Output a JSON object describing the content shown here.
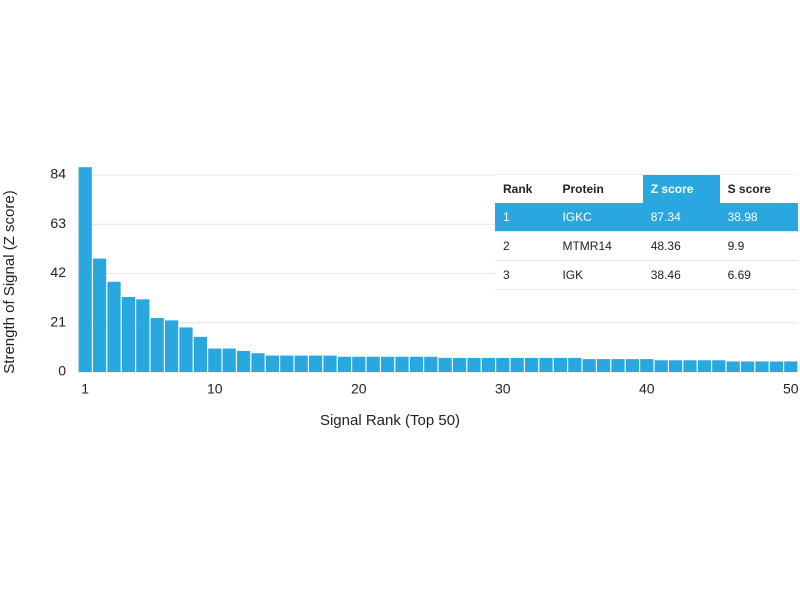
{
  "chart_data": {
    "type": "bar",
    "x_label": "Signal Rank (Top 50)",
    "y_label": "Strength of Signal (Z score)",
    "x": [
      1,
      2,
      3,
      4,
      5,
      6,
      7,
      8,
      9,
      10,
      11,
      12,
      13,
      14,
      15,
      16,
      17,
      18,
      19,
      20,
      21,
      22,
      23,
      24,
      25,
      26,
      27,
      28,
      29,
      30,
      31,
      32,
      33,
      34,
      35,
      36,
      37,
      38,
      39,
      40,
      41,
      42,
      43,
      44,
      45,
      46,
      47,
      48,
      49,
      50
    ],
    "values": [
      87.34,
      48.36,
      38.46,
      32,
      31,
      23,
      22,
      19,
      15,
      10,
      10,
      9,
      8,
      7,
      7,
      7,
      7,
      7,
      6.5,
      6.5,
      6.5,
      6.5,
      6.5,
      6.5,
      6.5,
      6,
      6,
      6,
      6,
      6,
      6,
      6,
      6,
      6,
      6,
      5.5,
      5.5,
      5.5,
      5.5,
      5.5,
      5,
      5,
      5,
      5,
      5,
      4.5,
      4.5,
      4.5,
      4.5,
      4.5
    ],
    "color": "#29a8e0",
    "xlim": [
      0.5,
      50.5
    ],
    "xticks": [
      1,
      10,
      20,
      30,
      40,
      50
    ],
    "ylim": [
      0,
      84
    ],
    "yticks": [
      0,
      21,
      42,
      63,
      84
    ],
    "grid": true
  },
  "table": {
    "header": [
      "Rank",
      "Protein",
      "Z score",
      "S score"
    ],
    "rows": [
      [
        "1",
        "IGKC",
        "87.34",
        "38.98"
      ],
      [
        "2",
        "MTMR14",
        "48.36",
        "9.9"
      ],
      [
        "3",
        "IGK",
        "38.46",
        "6.69"
      ]
    ],
    "highlight_row": 0,
    "highlight_column": 2,
    "highlight_color": "#29a8e0"
  }
}
